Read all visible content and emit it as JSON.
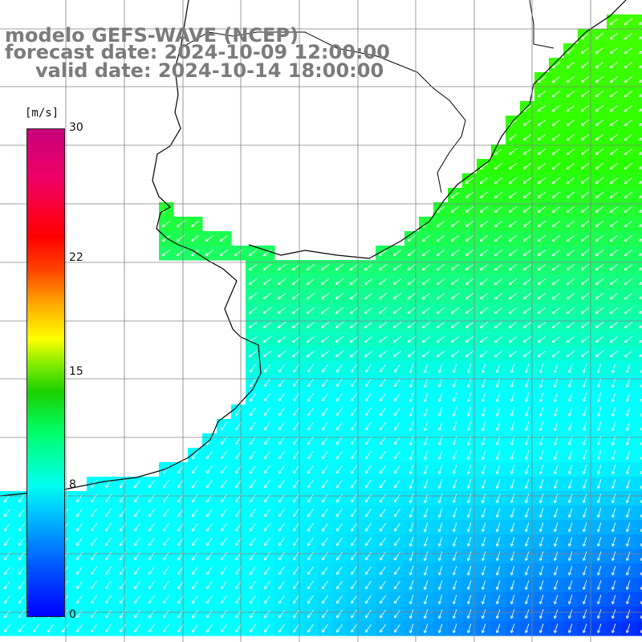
{
  "header": {
    "line1": "modelo GEFS-WAVE (NCEP)",
    "line2": "forecast date: 2024-10-09 12:00:00",
    "line3": "valid date: 2024-10-14 18:00:00"
  },
  "colorbar": {
    "unit": "[m/s]",
    "min": 0,
    "max": 30,
    "ticks": [
      {
        "label": "30",
        "value": 30
      },
      {
        "label": "22",
        "value": 22
      },
      {
        "label": "15",
        "value": 15
      },
      {
        "label": "8",
        "value": 8
      },
      {
        "label": "0",
        "value": 0
      }
    ],
    "stops": [
      "#0000ff",
      "#00aaff",
      "#00ffff",
      "#00ff33",
      "#ffff00",
      "#ff7700",
      "#ff0000",
      "#c8007a"
    ]
  },
  "map": {
    "field": "wind speed",
    "arrow_color": "#ffffff",
    "land_color": "#ffffff",
    "coast_color": "#000000",
    "grid_color": "#808080",
    "prevailing_direction": "from north-east"
  }
}
